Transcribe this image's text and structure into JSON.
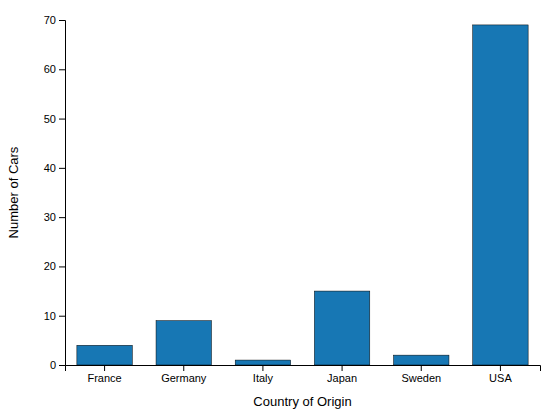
{
  "chart_data": {
    "type": "bar",
    "categories": [
      "France",
      "Germany",
      "Italy",
      "Japan",
      "Sweden",
      "USA"
    ],
    "values": [
      4,
      9,
      1,
      15,
      2,
      69
    ],
    "color": "#1777B4",
    "xlabel": "Country of Origin",
    "ylabel": "Number of Cars",
    "ylim": [
      0,
      70
    ],
    "yticks": [
      0,
      10,
      20,
      30,
      40,
      50,
      60,
      70
    ],
    "grid": false
  }
}
